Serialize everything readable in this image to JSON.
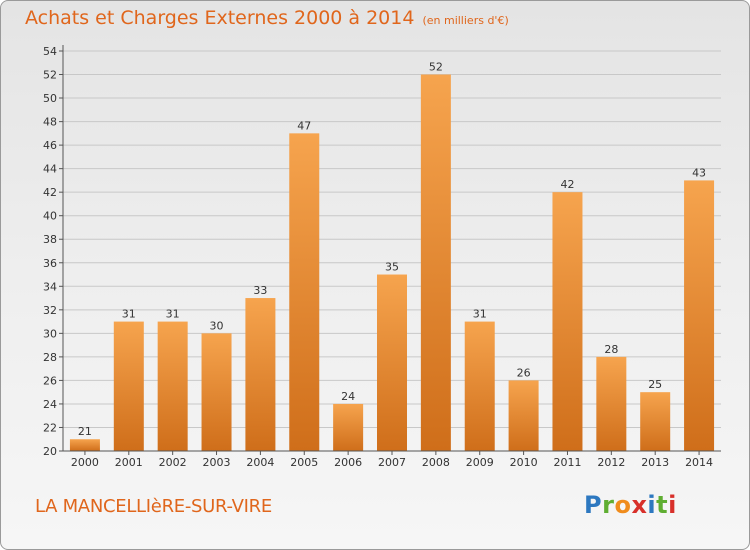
{
  "header": {
    "title": "Achats et Charges Externes 2000 à 2014",
    "unit": "(en milliers d'€)"
  },
  "footer": {
    "commune": "LA MANCELLIèRE-SUR-VIRE",
    "logo_text": "Proxiti",
    "logo_letters": [
      "P",
      "r",
      "o",
      "x",
      "i",
      "t",
      "i"
    ]
  },
  "colors": {
    "bar_light": "#f6a44e",
    "bar_dark": "#cf6e1a",
    "title": "#e0661c"
  },
  "chart_data": {
    "type": "bar",
    "title": "Achats et Charges Externes 2000 à 2014",
    "subtitle": "(en milliers d'€)",
    "categories": [
      "2000",
      "2001",
      "2002",
      "2003",
      "2004",
      "2005",
      "2006",
      "2007",
      "2008",
      "2009",
      "2010",
      "2011",
      "2012",
      "2013",
      "2014"
    ],
    "values": [
      21,
      31,
      31,
      30,
      33,
      47,
      24,
      35,
      52,
      31,
      26,
      42,
      28,
      25,
      43
    ],
    "ylim": [
      20,
      54
    ],
    "yticks": [
      20,
      22,
      24,
      26,
      28,
      30,
      32,
      34,
      36,
      38,
      40,
      42,
      44,
      46,
      48,
      50,
      52,
      54
    ],
    "xlabel": "",
    "ylabel": "",
    "grid": true,
    "data_labels": true
  }
}
